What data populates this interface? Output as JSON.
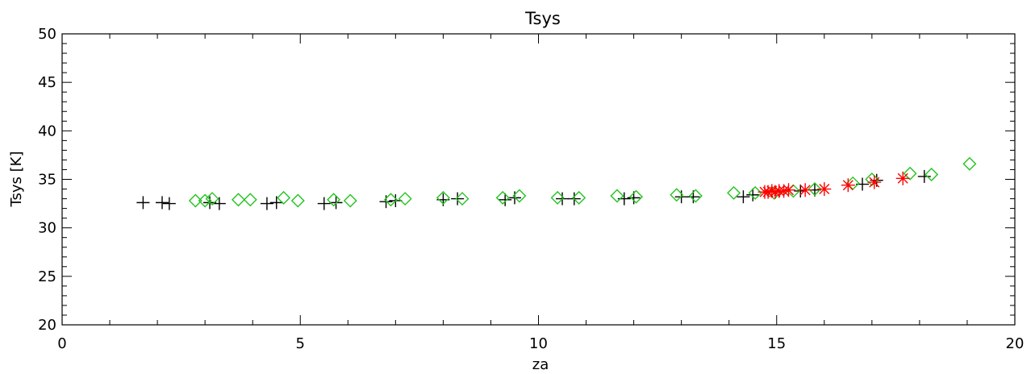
{
  "chart_data": {
    "type": "scatter",
    "title": "Tsys",
    "xlabel": "za",
    "ylabel": "Tsys [K]",
    "xlim": [
      0,
      20
    ],
    "ylim": [
      20,
      50
    ],
    "xticks": [
      0,
      5,
      10,
      15,
      20
    ],
    "yticks": [
      20,
      25,
      30,
      35,
      40,
      45,
      50
    ],
    "grid": false,
    "series": [
      {
        "marker": "plus",
        "color": "#000000",
        "points": [
          [
            1.7,
            32.6
          ],
          [
            2.1,
            32.6
          ],
          [
            2.25,
            32.5
          ],
          [
            3.1,
            32.6
          ],
          [
            3.3,
            32.5
          ],
          [
            4.3,
            32.5
          ],
          [
            4.5,
            32.6
          ],
          [
            5.5,
            32.5
          ],
          [
            5.75,
            32.6
          ],
          [
            6.8,
            32.7
          ],
          [
            7.0,
            32.8
          ],
          [
            8.0,
            32.9
          ],
          [
            8.3,
            33.0
          ],
          [
            9.3,
            32.9
          ],
          [
            9.5,
            33.1
          ],
          [
            10.5,
            33.0
          ],
          [
            10.75,
            33.0
          ],
          [
            11.8,
            33.0
          ],
          [
            12.0,
            33.1
          ],
          [
            13.0,
            33.2
          ],
          [
            13.25,
            33.2
          ],
          [
            14.3,
            33.2
          ],
          [
            14.5,
            33.4
          ],
          [
            15.5,
            33.8
          ],
          [
            15.8,
            33.9
          ],
          [
            16.8,
            34.5
          ],
          [
            17.1,
            34.9
          ],
          [
            18.1,
            35.3
          ]
        ]
      },
      {
        "marker": "diamond",
        "color": "#22c41e",
        "points": [
          [
            2.8,
            32.8
          ],
          [
            3.0,
            32.8
          ],
          [
            3.15,
            33.0
          ],
          [
            3.7,
            32.9
          ],
          [
            3.95,
            32.9
          ],
          [
            4.65,
            33.1
          ],
          [
            4.95,
            32.8
          ],
          [
            5.7,
            32.9
          ],
          [
            6.05,
            32.8
          ],
          [
            6.9,
            32.9
          ],
          [
            7.2,
            33.0
          ],
          [
            8.0,
            33.1
          ],
          [
            8.4,
            33.0
          ],
          [
            9.25,
            33.1
          ],
          [
            9.6,
            33.3
          ],
          [
            10.4,
            33.1
          ],
          [
            10.85,
            33.1
          ],
          [
            11.65,
            33.3
          ],
          [
            12.05,
            33.2
          ],
          [
            12.9,
            33.4
          ],
          [
            13.3,
            33.3
          ],
          [
            14.1,
            33.6
          ],
          [
            14.55,
            33.6
          ],
          [
            14.95,
            33.6
          ],
          [
            15.35,
            33.8
          ],
          [
            15.8,
            34.0
          ],
          [
            16.6,
            34.6
          ],
          [
            17.0,
            35.0
          ],
          [
            17.8,
            35.6
          ],
          [
            18.25,
            35.5
          ],
          [
            19.05,
            36.6
          ]
        ]
      },
      {
        "marker": "asterisk",
        "color": "#ff0000",
        "points": [
          [
            14.75,
            33.7
          ],
          [
            14.82,
            33.7
          ],
          [
            14.9,
            33.8
          ],
          [
            14.97,
            33.7
          ],
          [
            15.05,
            33.8
          ],
          [
            15.15,
            33.8
          ],
          [
            15.25,
            33.9
          ],
          [
            15.6,
            33.9
          ],
          [
            16.0,
            34.0
          ],
          [
            16.5,
            34.4
          ],
          [
            17.05,
            34.7
          ],
          [
            17.65,
            35.1
          ]
        ]
      }
    ]
  }
}
